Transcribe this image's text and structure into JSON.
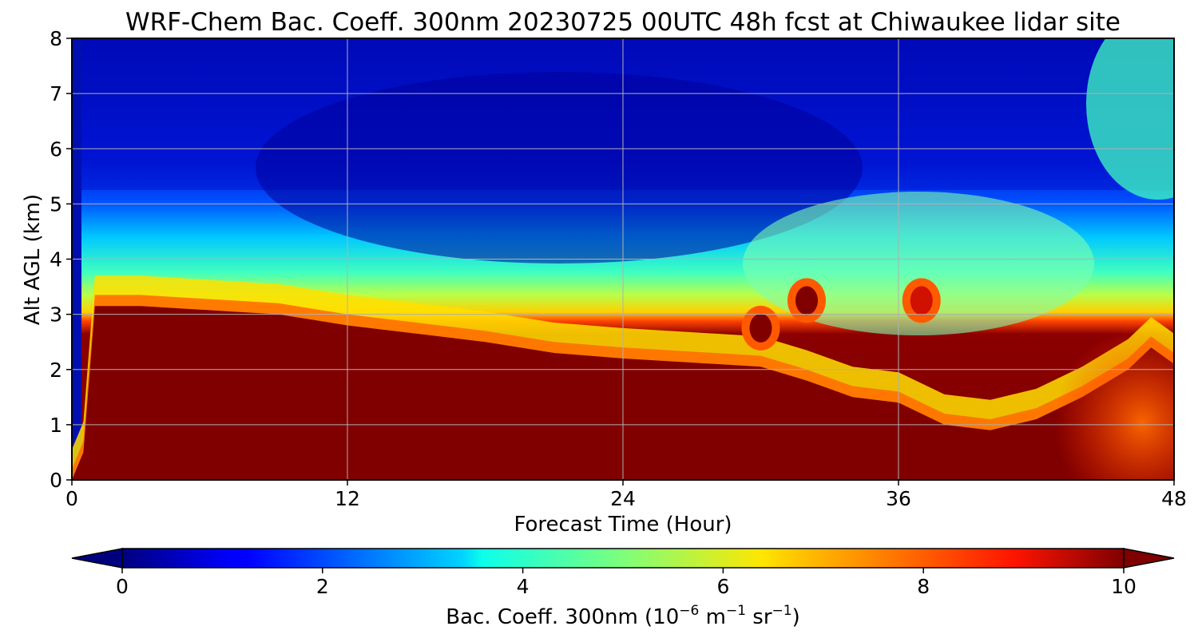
{
  "chart_data": {
    "type": "heatmap",
    "title": "WRF-Chem Bac. Coeff. 300nm  20230725 00UTC 48h fcst at Chiwaukee lidar site",
    "xlabel": "Forecast Time (Hour)",
    "ylabel": "Alt AGL (km)",
    "xlim": [
      0,
      48
    ],
    "ylim": [
      0,
      8
    ],
    "x_ticks": [
      "0",
      "12",
      "24",
      "36",
      "48"
    ],
    "y_ticks": [
      "0",
      "1",
      "2",
      "3",
      "4",
      "5",
      "6",
      "7",
      "8"
    ],
    "grid": true,
    "colormap": "jet",
    "colorbar": {
      "range": [
        0,
        10
      ],
      "ticks": [
        "0",
        "2",
        "4",
        "6",
        "8",
        "10"
      ],
      "label_main": "Bac. Coeff. 300nm  (10",
      "exp1": "−6",
      "label_mid": " m",
      "exp2": "−1",
      "label_mid2": " sr",
      "exp3": "−1",
      "label_end": ")",
      "extend": "both",
      "orientation": "horizontal"
    },
    "layer_top_km": [
      [
        0,
        0.0
      ],
      [
        0.5,
        0.5
      ],
      [
        1,
        3.15
      ],
      [
        3,
        3.15
      ],
      [
        5,
        3.1
      ],
      [
        7,
        3.05
      ],
      [
        9,
        3.0
      ],
      [
        12,
        2.8
      ],
      [
        15,
        2.65
      ],
      [
        18,
        2.5
      ],
      [
        21,
        2.3
      ],
      [
        24,
        2.2
      ],
      [
        26,
        2.15
      ],
      [
        28,
        2.1
      ],
      [
        30,
        2.05
      ],
      [
        32,
        1.8
      ],
      [
        34,
        1.5
      ],
      [
        36,
        1.4
      ],
      [
        38,
        1.0
      ],
      [
        40,
        0.9
      ],
      [
        42,
        1.1
      ],
      [
        44,
        1.5
      ],
      [
        46,
        2.0
      ],
      [
        47,
        2.4
      ],
      [
        48,
        2.1
      ]
    ],
    "hotspots": [
      {
        "x": 30.0,
        "y": 2.75,
        "value": 10
      },
      {
        "x": 32.0,
        "y": 3.25,
        "value": 10
      },
      {
        "x": 37.0,
        "y": 3.25,
        "value": 9
      }
    ]
  }
}
